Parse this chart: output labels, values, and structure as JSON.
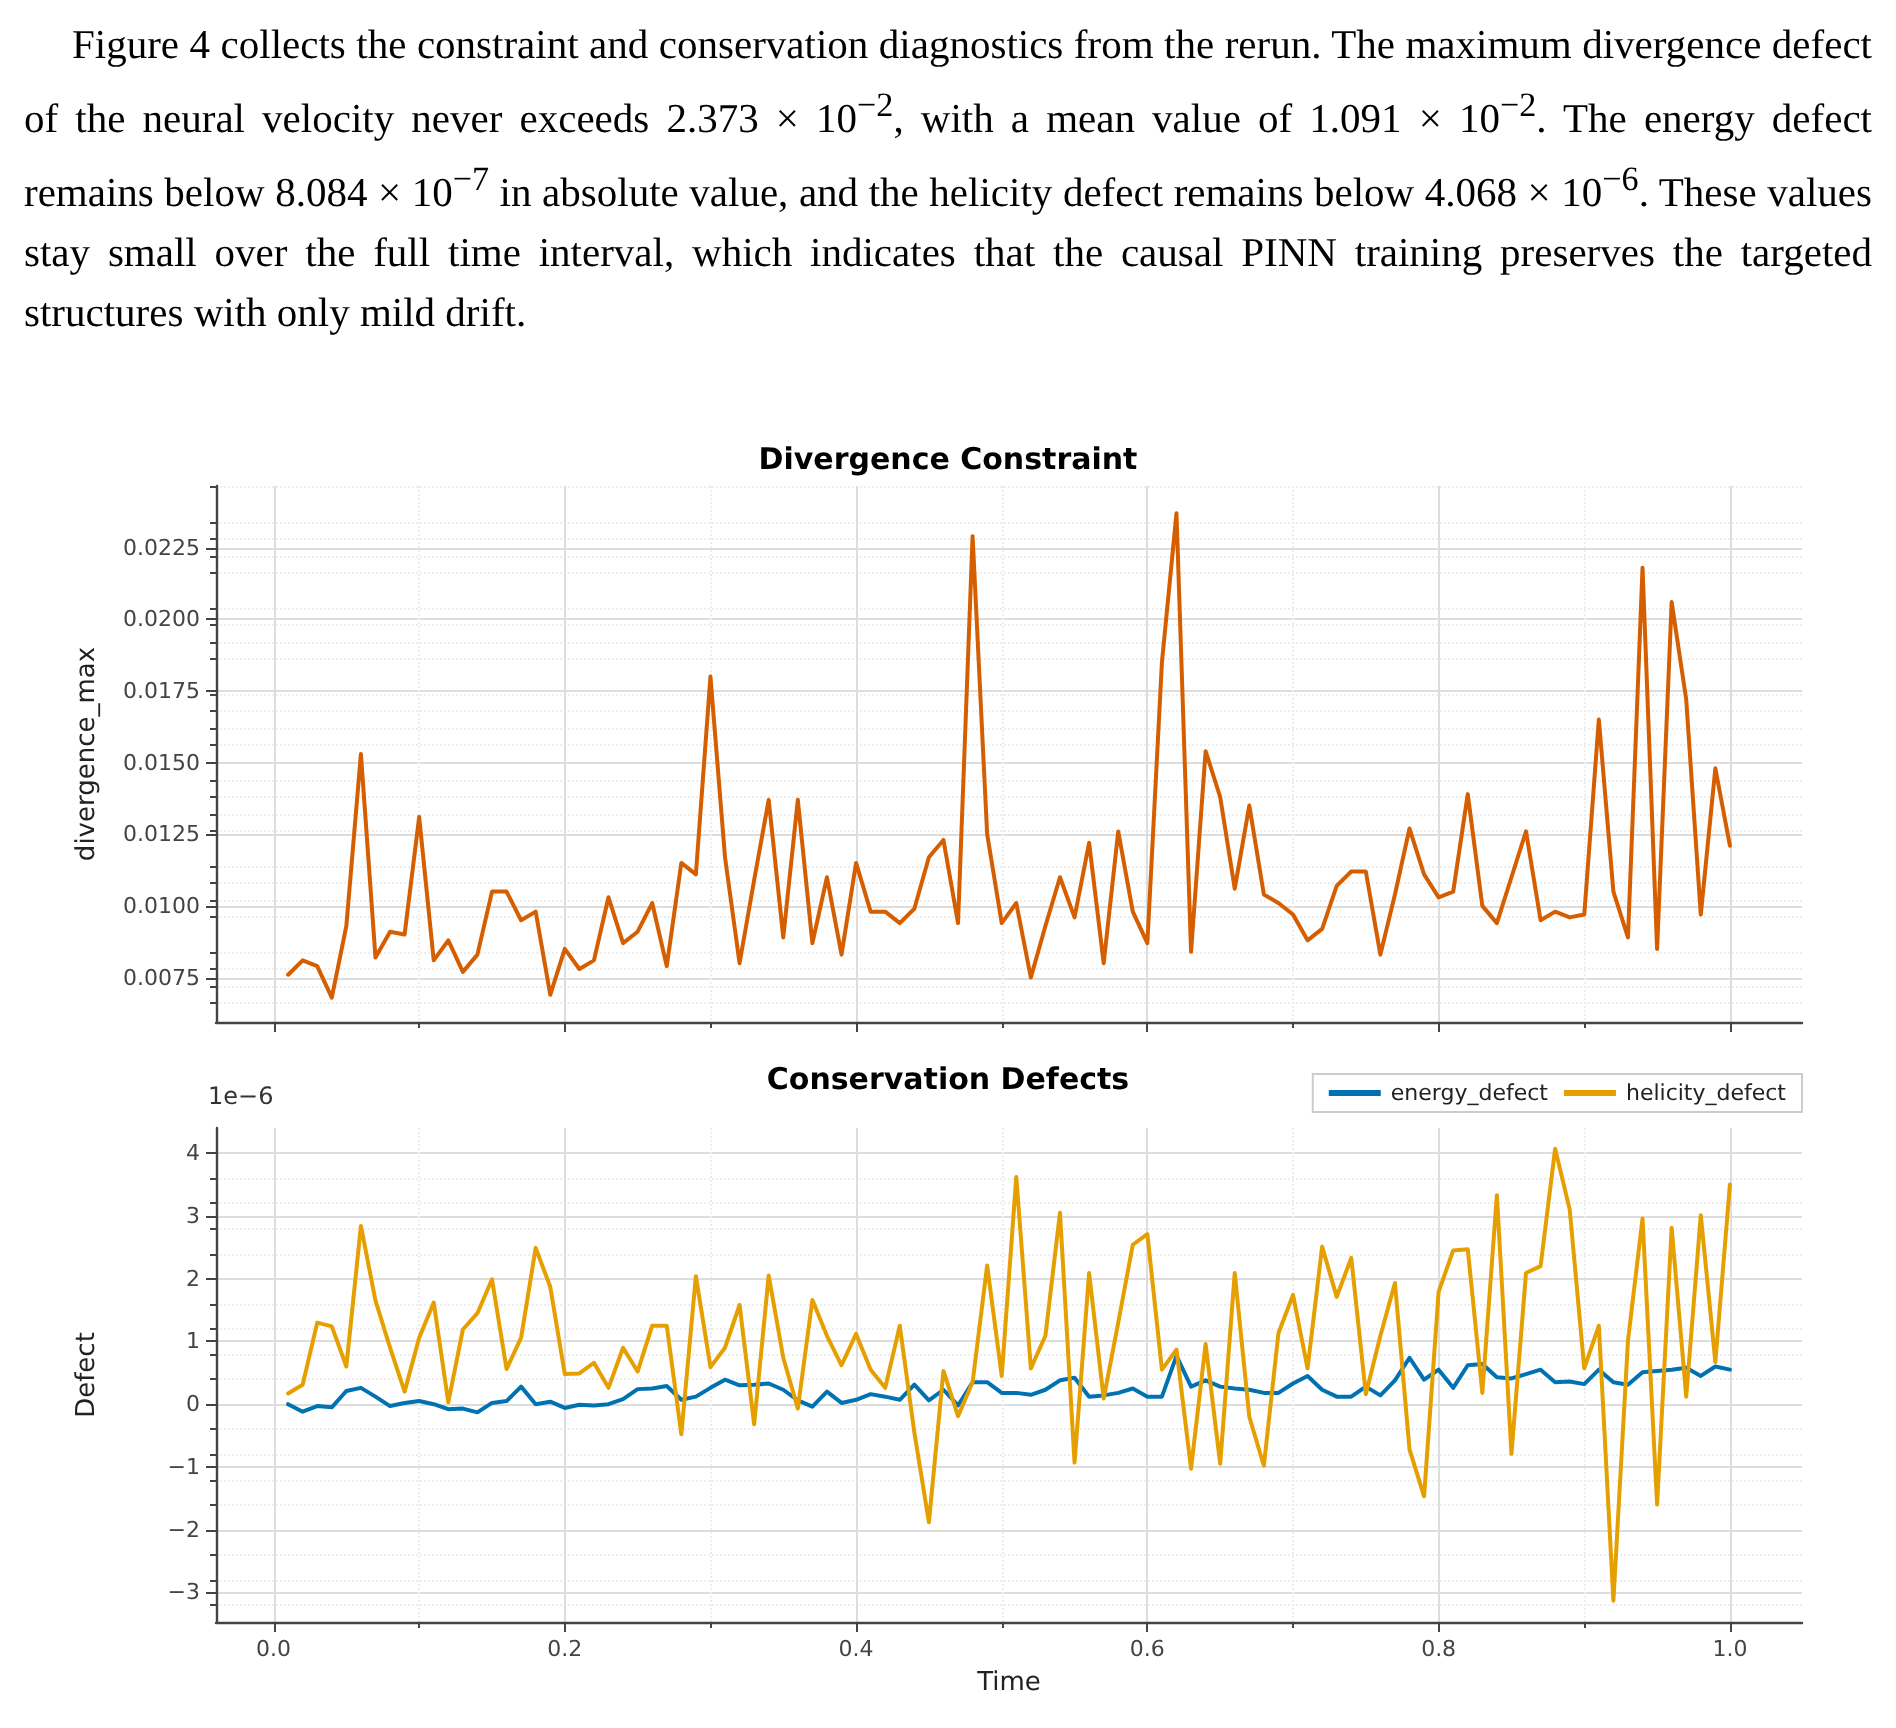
{
  "chart_data": [
    {
      "type": "line",
      "title": "Divergence Constraint",
      "ylabel": "divergence_max",
      "annotations": [
        "Figure 4 collects the constraint and conservation diagnostics from the rerun. The maximum divergence defect of the neural velocity never exceeds 2.373 × 10$^{−2}$, with a mean value of 1.091 × 10$^{−2}$. The energy defect remains below 8.084 × 10$^{−7}$ in absolute value, and the helicity defect remains below 4.068 × 10$^{−6}$. These values stay small over the full time interval, which indicates that the causal PINN training preserves the targeted structures with only mild drift."
      ],
      "x": [
        0.01,
        0.02,
        0.03,
        0.04,
        0.05,
        0.06,
        0.07,
        0.08,
        0.09,
        0.1,
        0.11,
        0.12,
        0.13,
        0.14,
        0.15,
        0.16,
        0.17,
        0.18,
        0.19,
        0.2,
        0.21,
        0.22,
        0.23,
        0.24,
        0.25,
        0.26,
        0.27,
        0.28,
        0.29,
        0.3,
        0.31,
        0.32,
        0.33,
        0.34,
        0.35,
        0.36,
        0.37,
        0.38,
        0.39,
        0.4,
        0.41,
        0.42,
        0.43,
        0.44,
        0.45,
        0.46,
        0.47,
        0.48,
        0.49,
        0.5,
        0.51,
        0.52,
        0.53,
        0.54,
        0.55,
        0.56,
        0.57,
        0.58,
        0.59,
        0.6,
        0.61,
        0.62,
        0.63,
        0.64,
        0.65,
        0.66,
        0.67,
        0.68,
        0.69,
        0.7,
        0.71,
        0.72,
        0.73,
        0.74,
        0.75,
        0.76,
        0.77,
        0.78,
        0.79,
        0.8,
        0.81,
        0.82,
        0.83,
        0.84,
        0.85,
        0.86,
        0.87,
        0.88,
        0.89,
        0.9,
        0.91,
        0.92,
        0.93,
        0.94,
        0.95,
        0.96,
        0.97,
        0.98,
        0.99,
        1.0
      ],
      "series": [
        {
          "color": "#d55e00",
          "values": [
            0.0076,
            0.0081,
            0.0079,
            0.0068,
            0.0093,
            0.0153,
            0.0082,
            0.0091,
            0.009,
            0.0131,
            0.0081,
            0.0088,
            0.0077,
            0.0083,
            0.0105,
            0.0105,
            0.0095,
            0.0098,
            0.0069,
            0.0085,
            0.0078,
            0.0081,
            0.0103,
            0.0087,
            0.0091,
            0.0101,
            0.0079,
            0.0115,
            0.0111,
            0.018,
            0.0117,
            0.008,
            0.0109,
            0.0137,
            0.0089,
            0.0137,
            0.0087,
            0.011,
            0.0083,
            0.0115,
            0.0098,
            0.0098,
            0.0094,
            0.0099,
            0.0117,
            0.0123,
            0.0094,
            0.0229,
            0.0125,
            0.0094,
            0.0101,
            0.0075,
            0.0093,
            0.011,
            0.0096,
            0.0122,
            0.008,
            0.0126,
            0.0098,
            0.0087,
            0.0185,
            0.0237,
            0.0084,
            0.0154,
            0.0138,
            0.0106,
            0.0135,
            0.0104,
            0.0101,
            0.0097,
            0.0088,
            0.0092,
            0.0107,
            0.0112,
            0.0112,
            0.0083,
            0.0104,
            0.0127,
            0.0111,
            0.0103,
            0.0105,
            0.0139,
            0.01,
            0.0094,
            0.011,
            0.0126,
            0.0095,
            0.0098,
            0.0096,
            0.0097,
            0.0165,
            0.0105,
            0.0089,
            0.0218,
            0.0085,
            0.0206,
            0.0172,
            0.0097,
            0.0148,
            0.0121
          ]
        }
      ],
      "xlim": [
        -0.0395,
        1.0495
      ],
      "xticks": [
        0,
        0.2,
        0.4,
        0.6,
        0.8,
        1
      ],
      "ylim": [
        0.00595,
        0.02465
      ],
      "yticks": [
        0.0075,
        {
          "value": 0.01,
          "label": "0.0100"
        },
        0.0125,
        {
          "value": 0.015,
          "label": "0.0150"
        },
        0.0175,
        {
          "value": 0.02,
          "label": "0.0200"
        },
        0.0225
      ],
      "tick_labels": "y",
      "grid": true
    },
    {
      "type": "line",
      "title": "Conservation Defects",
      "xlabel": "Time",
      "ylabel": "Defect",
      "annotations": [
        "1e−6"
      ],
      "x": [
        0.01,
        0.02,
        0.03,
        0.04,
        0.05,
        0.06,
        0.07,
        0.08,
        0.09,
        0.1,
        0.11,
        0.12,
        0.13,
        0.14,
        0.15,
        0.16,
        0.17,
        0.18,
        0.19,
        0.2,
        0.21,
        0.22,
        0.23,
        0.24,
        0.25,
        0.26,
        0.27,
        0.28,
        0.29,
        0.3,
        0.31,
        0.32,
        0.33,
        0.34,
        0.35,
        0.36,
        0.37,
        0.38,
        0.39,
        0.4,
        0.41,
        0.42,
        0.43,
        0.44,
        0.45,
        0.46,
        0.47,
        0.48,
        0.49,
        0.5,
        0.51,
        0.52,
        0.53,
        0.54,
        0.55,
        0.56,
        0.57,
        0.58,
        0.59,
        0.6,
        0.61,
        0.62,
        0.63,
        0.64,
        0.65,
        0.66,
        0.67,
        0.68,
        0.69,
        0.7,
        0.71,
        0.72,
        0.73,
        0.74,
        0.75,
        0.76,
        0.77,
        0.78,
        0.79,
        0.8,
        0.81,
        0.82,
        0.83,
        0.84,
        0.85,
        0.86,
        0.87,
        0.88,
        0.89,
        0.9,
        0.91,
        0.92,
        0.93,
        0.94,
        0.95,
        0.96,
        0.97,
        0.98,
        0.99,
        1.0
      ],
      "series": [
        {
          "name": "energy_defect",
          "color": "#0072b2",
          "values": [
            0.0,
            -0.12,
            -0.03,
            -0.05,
            0.21,
            0.26,
            0.12,
            -0.03,
            0.02,
            0.05,
            0.0,
            -0.08,
            -0.07,
            -0.13,
            0.02,
            0.05,
            0.28,
            0.0,
            0.04,
            -0.06,
            -0.01,
            -0.02,
            0.0,
            0.08,
            0.24,
            0.25,
            0.29,
            0.07,
            0.12,
            0.26,
            0.39,
            0.3,
            0.31,
            0.33,
            0.23,
            0.06,
            -0.04,
            0.2,
            0.02,
            0.07,
            0.16,
            0.12,
            0.07,
            0.31,
            0.06,
            0.23,
            -0.02,
            0.35,
            0.35,
            0.18,
            0.18,
            0.15,
            0.23,
            0.38,
            0.42,
            0.12,
            0.14,
            0.18,
            0.25,
            0.12,
            0.12,
            0.77,
            0.28,
            0.38,
            0.28,
            0.25,
            0.23,
            0.18,
            0.18,
            0.33,
            0.45,
            0.23,
            0.12,
            0.12,
            0.28,
            0.14,
            0.38,
            0.74,
            0.39,
            0.55,
            0.26,
            0.62,
            0.64,
            0.43,
            0.41,
            0.48,
            0.55,
            0.35,
            0.36,
            0.32,
            0.55,
            0.35,
            0.31,
            0.51,
            0.53,
            0.55,
            0.58,
            0.45,
            0.6,
            0.55
          ]
        },
        {
          "name": "helicity_defect",
          "color": "#e69f00",
          "values": [
            0.17,
            0.31,
            1.3,
            1.24,
            0.6,
            2.84,
            1.65,
            0.9,
            0.2,
            1.06,
            1.62,
            0.03,
            1.19,
            1.45,
            1.99,
            0.56,
            1.06,
            2.49,
            1.87,
            0.48,
            0.49,
            0.66,
            0.26,
            0.9,
            0.52,
            1.25,
            1.25,
            -0.48,
            2.04,
            0.59,
            0.9,
            1.58,
            -0.32,
            2.05,
            0.74,
            -0.07,
            1.66,
            1.09,
            0.62,
            1.12,
            0.55,
            0.26,
            1.25,
            -0.45,
            -1.88,
            0.53,
            -0.19,
            0.35,
            2.21,
            0.45,
            3.62,
            0.57,
            1.09,
            3.05,
            -0.93,
            2.09,
            0.09,
            1.3,
            2.54,
            2.71,
            0.55,
            0.87,
            -1.03,
            0.96,
            -0.95,
            2.09,
            -0.2,
            -0.98,
            1.13,
            1.74,
            0.57,
            2.51,
            1.71,
            2.33,
            0.16,
            1.09,
            1.93,
            -0.72,
            -1.47,
            1.79,
            2.45,
            2.47,
            0.18,
            3.33,
            -0.79,
            2.09,
            2.2,
            4.07,
            3.1,
            0.57,
            1.25,
            -3.13,
            1.01,
            2.96,
            -1.6,
            2.81,
            0.12,
            3.01,
            0.67,
            3.5
          ]
        }
      ],
      "xlim": [
        -0.0395,
        1.0495
      ],
      "xticks": [
        {
          "value": 0,
          "label": "0.0"
        },
        0.2,
        0.4,
        0.6,
        0.8,
        {
          "value": 1,
          "label": "1.0"
        }
      ],
      "ylim": [
        -3.47,
        4.4
      ],
      "yticks": [
        {
          "value": -3,
          "label": "−3"
        },
        {
          "value": -2,
          "label": "−2"
        },
        {
          "value": -1,
          "label": "−1"
        },
        0,
        1,
        2,
        3,
        4
      ],
      "grid": true,
      "legend": "top right"
    }
  ]
}
